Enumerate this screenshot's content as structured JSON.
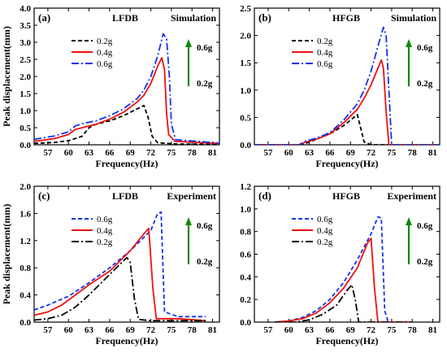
{
  "colors": {
    "0.2g": "#000000",
    "0.4g": "#ee1111",
    "0.6g": "#1133ee",
    "arrow": "#118811"
  },
  "chart_data": [
    {
      "type": "line",
      "panel_label": "(a)",
      "tags": [
        "LFDB",
        "Simulation"
      ],
      "xlabel": "Frequency(Hz)",
      "ylabel": "Peak displacement(mm)",
      "xlim": [
        55,
        82
      ],
      "ylim": [
        0,
        4.0
      ],
      "xticks": [
        57,
        60,
        63,
        66,
        69,
        72,
        75,
        78,
        81
      ],
      "xtick_labels": [
        "57",
        "60",
        "63",
        "66",
        "69",
        "72",
        "75",
        "78",
        "81"
      ],
      "yticks": [
        0,
        0.5,
        1.0,
        1.5,
        2.0,
        2.5,
        3.0,
        3.5,
        4.0
      ],
      "ytick_labels": [
        "0.0",
        "0.5",
        "1.0",
        "1.5",
        "2.0",
        "2.5",
        "3.0",
        "3.5",
        "4.0"
      ],
      "legend": [
        "0.2g",
        "0.4g",
        "0.6g"
      ],
      "legend_position": "top-left",
      "arrow_labels": {
        "top": "0.6g",
        "bottom": "0.2g"
      },
      "series": [
        {
          "name": "0.2g",
          "style": "short-dash",
          "points": [
            [
              55,
              0.04
            ],
            [
              58,
              0.07
            ],
            [
              60,
              0.12
            ],
            [
              62,
              0.25
            ],
            [
              63,
              0.5
            ],
            [
              64,
              0.6
            ],
            [
              66,
              0.7
            ],
            [
              68,
              0.85
            ],
            [
              70,
              1.05
            ],
            [
              71,
              1.15
            ],
            [
              71.6,
              0.8
            ],
            [
              72.2,
              0.25
            ],
            [
              73,
              0.06
            ],
            [
              76,
              0.02
            ],
            [
              82,
              0.02
            ]
          ]
        },
        {
          "name": "0.4g",
          "style": "solid",
          "points": [
            [
              55,
              0.1
            ],
            [
              58,
              0.18
            ],
            [
              60,
              0.3
            ],
            [
              61,
              0.45
            ],
            [
              62,
              0.5
            ],
            [
              64,
              0.6
            ],
            [
              66,
              0.75
            ],
            [
              68,
              0.95
            ],
            [
              70,
              1.25
            ],
            [
              71,
              1.45
            ],
            [
              72,
              1.8
            ],
            [
              73,
              2.3
            ],
            [
              73.6,
              2.55
            ],
            [
              74,
              2.2
            ],
            [
              74.3,
              0.9
            ],
            [
              74.6,
              0.3
            ],
            [
              75.5,
              0.1
            ],
            [
              82,
              0.04
            ]
          ]
        },
        {
          "name": "0.6g",
          "style": "dash-dot",
          "points": [
            [
              55,
              0.16
            ],
            [
              58,
              0.26
            ],
            [
              60,
              0.38
            ],
            [
              61,
              0.55
            ],
            [
              62,
              0.62
            ],
            [
              64,
              0.7
            ],
            [
              66,
              0.85
            ],
            [
              68,
              1.05
            ],
            [
              70,
              1.35
            ],
            [
              71,
              1.6
            ],
            [
              72,
              2.0
            ],
            [
              73,
              2.6
            ],
            [
              73.8,
              3.25
            ],
            [
              74.3,
              3.1
            ],
            [
              74.7,
              2.0
            ],
            [
              75,
              0.6
            ],
            [
              75.6,
              0.15
            ],
            [
              82,
              0.05
            ]
          ]
        }
      ]
    },
    {
      "type": "line",
      "panel_label": "(b)",
      "tags": [
        "HFGB",
        "Simulation"
      ],
      "xlabel": "Frequency(Hz)",
      "ylabel": "",
      "xlim": [
        55,
        82
      ],
      "ylim": [
        0,
        2.5
      ],
      "xticks": [
        57,
        60,
        63,
        66,
        69,
        72,
        75,
        78,
        81
      ],
      "xtick_labels": [
        "57",
        "60",
        "63",
        "66",
        "69",
        "72",
        "75",
        "78",
        "81"
      ],
      "yticks": [
        0,
        0.5,
        1.0,
        1.5,
        2.0,
        2.5
      ],
      "ytick_labels": [
        "0.0",
        "0.5",
        "1.0",
        "1.5",
        "2.0",
        "2.5"
      ],
      "legend": [
        "0.2g",
        "0.4g",
        "0.6g"
      ],
      "legend_position": "top-left",
      "arrow_labels": {
        "top": "0.6g",
        "bottom": "0.2g"
      },
      "series": [
        {
          "name": "0.2g",
          "style": "short-dash",
          "points": [
            [
              55,
              0
            ],
            [
              62,
              0
            ],
            [
              63,
              0.05
            ],
            [
              64,
              0.1
            ],
            [
              66,
              0.2
            ],
            [
              68,
              0.35
            ],
            [
              69,
              0.45
            ],
            [
              70,
              0.55
            ],
            [
              70.5,
              0.3
            ],
            [
              71,
              0.05
            ],
            [
              72,
              0
            ],
            [
              82,
              0
            ]
          ]
        },
        {
          "name": "0.4g",
          "style": "solid",
          "points": [
            [
              55,
              0
            ],
            [
              61.5,
              0
            ],
            [
              62.5,
              0.05
            ],
            [
              64,
              0.1
            ],
            [
              66,
              0.2
            ],
            [
              68,
              0.4
            ],
            [
              70,
              0.65
            ],
            [
              71,
              0.85
            ],
            [
              72,
              1.1
            ],
            [
              73,
              1.4
            ],
            [
              73.5,
              1.55
            ],
            [
              73.8,
              1.4
            ],
            [
              74.2,
              0.6
            ],
            [
              74.6,
              0
            ],
            [
              82,
              0
            ]
          ]
        },
        {
          "name": "0.6g",
          "style": "dash-dot",
          "points": [
            [
              55,
              0
            ],
            [
              61.5,
              0
            ],
            [
              62.5,
              0.07
            ],
            [
              64,
              0.12
            ],
            [
              66,
              0.22
            ],
            [
              68,
              0.45
            ],
            [
              70,
              0.75
            ],
            [
              71,
              1.0
            ],
            [
              72,
              1.35
            ],
            [
              73,
              1.8
            ],
            [
              73.8,
              2.15
            ],
            [
              74.2,
              2.0
            ],
            [
              74.6,
              1.0
            ],
            [
              75,
              0
            ],
            [
              82,
              0
            ]
          ]
        }
      ]
    },
    {
      "type": "line",
      "panel_label": "(c)",
      "tags": [
        "LFDB",
        "Experiment"
      ],
      "xlabel": "Frequency(Hz)",
      "ylabel": "Peak displacement(mm)",
      "xlim": [
        55,
        82
      ],
      "ylim": [
        0,
        2.0
      ],
      "xticks": [
        57,
        60,
        63,
        66,
        69,
        72,
        75,
        78,
        81
      ],
      "xtick_labels": [
        "57",
        "60",
        "63",
        "66",
        "69",
        "72",
        "75",
        "78",
        "81"
      ],
      "yticks": [
        0,
        0.4,
        0.8,
        1.2,
        1.6,
        2.0
      ],
      "ytick_labels": [
        "0.0",
        "0.4",
        "0.8",
        "1.2",
        "1.6",
        "2.0"
      ],
      "legend": [
        "0.6g",
        "0.4g",
        "0.2g"
      ],
      "legend_position": "top-left",
      "arrow_labels": {
        "top": "0.6g",
        "bottom": "0.2g"
      },
      "series": [
        {
          "name": "0.6g",
          "style": "short-dash",
          "points": [
            [
              55,
              0.18
            ],
            [
              57,
              0.25
            ],
            [
              60,
              0.38
            ],
            [
              63,
              0.58
            ],
            [
              66,
              0.8
            ],
            [
              69,
              1.05
            ],
            [
              72,
              1.35
            ],
            [
              73,
              1.6
            ],
            [
              73.5,
              1.62
            ],
            [
              74,
              0.15
            ],
            [
              76,
              0.08
            ],
            [
              80,
              0.08
            ]
          ]
        },
        {
          "name": "0.4g",
          "style": "solid",
          "points": [
            [
              55,
              0.1
            ],
            [
              57,
              0.15
            ],
            [
              59,
              0.25
            ],
            [
              61,
              0.4
            ],
            [
              63,
              0.55
            ],
            [
              66,
              0.75
            ],
            [
              69,
              1.05
            ],
            [
              71,
              1.3
            ],
            [
              71.7,
              1.38
            ],
            [
              72.3,
              0.5
            ],
            [
              72.8,
              0.05
            ],
            [
              76,
              0.05
            ],
            [
              80,
              0.02
            ]
          ]
        },
        {
          "name": "0.2g",
          "style": "dash-dot",
          "points": [
            [
              55,
              0.03
            ],
            [
              57,
              0.05
            ],
            [
              59,
              0.1
            ],
            [
              61,
              0.22
            ],
            [
              63,
              0.4
            ],
            [
              65,
              0.6
            ],
            [
              67,
              0.8
            ],
            [
              68.5,
              0.95
            ],
            [
              69,
              0.88
            ],
            [
              69.6,
              0.35
            ],
            [
              70.2,
              0.04
            ],
            [
              72,
              0.02
            ],
            [
              80,
              0.02
            ]
          ]
        }
      ]
    },
    {
      "type": "line",
      "panel_label": "(d)",
      "tags": [
        "HFGB",
        "Experiment"
      ],
      "xlabel": "Frequency(Hz)",
      "ylabel": "",
      "xlim": [
        55,
        82
      ],
      "ylim": [
        0,
        1.2
      ],
      "xticks": [
        57,
        60,
        63,
        66,
        69,
        72,
        75,
        78,
        81
      ],
      "xtick_labels": [
        "57",
        "60",
        "63",
        "66",
        "69",
        "72",
        "75",
        "78",
        "81"
      ],
      "yticks": [
        0,
        0.2,
        0.4,
        0.6,
        0.8,
        1.0,
        1.2
      ],
      "ytick_labels": [
        "0.0",
        "0.2",
        "0.4",
        "0.6",
        "0.8",
        "1.0",
        "1.2"
      ],
      "legend": [
        "0.6g",
        "0.4g",
        "0.2g"
      ],
      "legend_position": "top-left",
      "arrow_labels": {
        "top": "0.6g",
        "bottom": "0.2g"
      },
      "series": [
        {
          "name": "0.6g",
          "style": "short-dash",
          "points": [
            [
              58,
              0
            ],
            [
              60,
              0.01
            ],
            [
              62,
              0.04
            ],
            [
              64,
              0.1
            ],
            [
              66,
              0.2
            ],
            [
              68,
              0.35
            ],
            [
              70,
              0.55
            ],
            [
              72,
              0.78
            ],
            [
              73,
              0.93
            ],
            [
              73.5,
              0.92
            ],
            [
              74,
              0.1
            ],
            [
              74.5,
              0
            ],
            [
              78,
              0
            ]
          ]
        },
        {
          "name": "0.4g",
          "style": "solid",
          "points": [
            [
              58,
              0
            ],
            [
              60,
              0.01
            ],
            [
              62,
              0.03
            ],
            [
              64,
              0.08
            ],
            [
              66,
              0.17
            ],
            [
              68,
              0.3
            ],
            [
              70,
              0.48
            ],
            [
              71.5,
              0.7
            ],
            [
              72,
              0.74
            ],
            [
              72.5,
              0.3
            ],
            [
              73,
              0
            ],
            [
              78,
              0
            ]
          ]
        },
        {
          "name": "0.2g",
          "style": "dash-dot",
          "points": [
            [
              58,
              0
            ],
            [
              61,
              0
            ],
            [
              63,
              0.02
            ],
            [
              65,
              0.07
            ],
            [
              67,
              0.15
            ],
            [
              68.5,
              0.28
            ],
            [
              69.2,
              0.33
            ],
            [
              69.7,
              0.2
            ],
            [
              70.2,
              0
            ],
            [
              78,
              0
            ]
          ]
        }
      ]
    }
  ]
}
